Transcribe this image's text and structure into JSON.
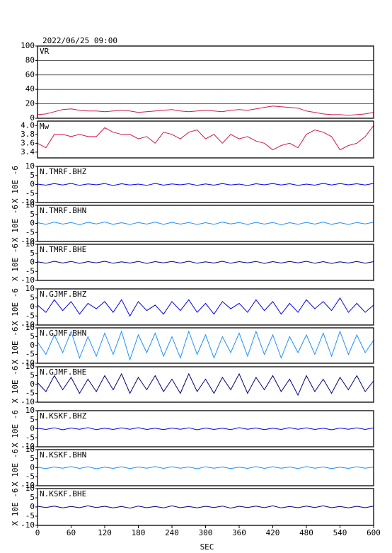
{
  "chart_data": [
    {
      "type": "line",
      "title": "2022/06/25 09:00",
      "label": "VR",
      "color": "#d0194a",
      "grid": true,
      "xlim": [
        0,
        600
      ],
      "ylim": [
        0,
        100
      ],
      "yticks": [
        0,
        20,
        40,
        60,
        80,
        100
      ],
      "x": [
        0,
        15,
        30,
        45,
        60,
        75,
        90,
        105,
        120,
        135,
        150,
        165,
        180,
        195,
        210,
        225,
        240,
        255,
        270,
        285,
        300,
        315,
        330,
        345,
        360,
        375,
        390,
        405,
        420,
        435,
        450,
        465,
        480,
        495,
        510,
        525,
        540,
        555,
        570,
        585,
        600
      ],
      "values": [
        5,
        6,
        9,
        12,
        13,
        11,
        10,
        10,
        9,
        10,
        11,
        10,
        8,
        9,
        10,
        11,
        12,
        10,
        9,
        10,
        11,
        10,
        9,
        11,
        12,
        11,
        13,
        15,
        17,
        16,
        15,
        14,
        10,
        8,
        6,
        5,
        5,
        4,
        5,
        6,
        8
      ]
    },
    {
      "type": "line",
      "label": "Mw",
      "color": "#d0194a",
      "xlim": [
        0,
        600
      ],
      "ylim": [
        3.27,
        4.1
      ],
      "yticks": [
        3.4,
        3.6,
        3.8,
        {
          "value": 4,
          "label": "4.0"
        }
      ],
      "x": [
        0,
        15,
        30,
        45,
        60,
        75,
        90,
        105,
        120,
        135,
        150,
        165,
        180,
        195,
        210,
        225,
        240,
        255,
        270,
        285,
        300,
        315,
        330,
        345,
        360,
        375,
        390,
        405,
        420,
        435,
        450,
        465,
        480,
        495,
        510,
        525,
        540,
        555,
        570,
        585,
        600
      ],
      "values": [
        3.6,
        3.5,
        3.8,
        3.8,
        3.75,
        3.8,
        3.75,
        3.75,
        3.95,
        3.85,
        3.8,
        3.8,
        3.7,
        3.75,
        3.6,
        3.85,
        3.8,
        3.7,
        3.85,
        3.9,
        3.7,
        3.8,
        3.6,
        3.8,
        3.7,
        3.75,
        3.65,
        3.6,
        3.45,
        3.55,
        3.6,
        3.5,
        3.8,
        3.9,
        3.85,
        3.75,
        3.45,
        3.55,
        3.6,
        3.75,
        4.0
      ]
    },
    {
      "type": "line",
      "label": "N.TMRF.BHZ",
      "ylabel": "X 10E -6",
      "color": "#0000ee",
      "xlim": [
        0,
        600
      ],
      "ylim": [
        -10,
        10
      ],
      "yticks": [
        -10,
        -5,
        0,
        5,
        10
      ],
      "x": [
        0,
        15,
        30,
        45,
        60,
        75,
        90,
        105,
        120,
        135,
        150,
        165,
        180,
        195,
        210,
        225,
        240,
        255,
        270,
        285,
        300,
        315,
        330,
        345,
        360,
        375,
        390,
        405,
        420,
        435,
        450,
        465,
        480,
        495,
        510,
        525,
        540,
        555,
        570,
        585,
        600
      ],
      "values": [
        0.2,
        -0.4,
        0.5,
        -0.3,
        0.6,
        -0.5,
        0.3,
        -0.2,
        0.5,
        -0.6,
        0.4,
        -0.3,
        0.2,
        -0.5,
        0.6,
        -0.4,
        0.3,
        -0.2,
        0.4,
        -0.5,
        0.3,
        -0.4,
        0.5,
        -0.3,
        0.2,
        -0.6,
        0.4,
        -0.2,
        0.5,
        -0.3,
        0.4,
        -0.5,
        0.2,
        -0.4,
        0.6,
        -0.3,
        0.5,
        -0.2,
        0.4,
        -0.3,
        0.6
      ]
    },
    {
      "type": "line",
      "label": "N.TMRF.BHN",
      "ylabel": "X 10E -6",
      "color": "#1e90ff",
      "xlim": [
        0,
        600
      ],
      "ylim": [
        -10,
        10
      ],
      "yticks": [
        -10,
        -5,
        0,
        5,
        10
      ],
      "x": [
        0,
        15,
        30,
        45,
        60,
        75,
        90,
        105,
        120,
        135,
        150,
        165,
        180,
        195,
        210,
        225,
        240,
        255,
        270,
        285,
        300,
        315,
        330,
        345,
        360,
        375,
        390,
        405,
        420,
        435,
        450,
        465,
        480,
        495,
        510,
        525,
        540,
        555,
        570,
        585,
        600
      ],
      "values": [
        0.4,
        -0.5,
        0.7,
        -0.4,
        0.5,
        -0.7,
        0.6,
        -0.3,
        0.8,
        -0.5,
        0.4,
        -0.6,
        0.5,
        -0.4,
        0.7,
        -0.5,
        0.6,
        -0.4,
        0.5,
        -0.6,
        0.4,
        -0.5,
        0.7,
        -0.3,
        0.5,
        -0.6,
        0.6,
        -0.4,
        0.5,
        -0.7,
        0.4,
        -0.5,
        0.6,
        -0.4,
        0.7,
        -0.5,
        0.4,
        -0.6,
        0.5,
        -0.3,
        0.7
      ]
    },
    {
      "type": "line",
      "label": "N.TMRF.BHE",
      "ylabel": "X 10E -6",
      "color": "#000080",
      "xlim": [
        0,
        600
      ],
      "ylim": [
        -10,
        10
      ],
      "yticks": [
        -10,
        -5,
        0,
        5,
        10
      ],
      "x": [
        0,
        15,
        30,
        45,
        60,
        75,
        90,
        105,
        120,
        135,
        150,
        165,
        180,
        195,
        210,
        225,
        240,
        255,
        270,
        285,
        300,
        315,
        330,
        345,
        360,
        375,
        390,
        405,
        420,
        435,
        450,
        465,
        480,
        495,
        510,
        525,
        540,
        555,
        570,
        585,
        600
      ],
      "values": [
        0.3,
        -0.5,
        0.6,
        -0.4,
        0.5,
        -0.6,
        0.4,
        -0.3,
        0.6,
        -0.5,
        0.3,
        -0.4,
        0.5,
        -0.6,
        0.4,
        -0.3,
        0.5,
        -0.4,
        0.6,
        -0.5,
        0.3,
        -0.4,
        0.6,
        -0.5,
        0.4,
        -0.3,
        0.5,
        -0.6,
        0.4,
        -0.4,
        0.5,
        -0.3,
        0.6,
        -0.5,
        0.4,
        -0.6,
        0.3,
        -0.4,
        0.5,
        -0.5,
        0.4
      ]
    },
    {
      "type": "line",
      "label": "N.GJMF.BHZ",
      "ylabel": "X 10E -6",
      "color": "#0000ee",
      "xlim": [
        0,
        600
      ],
      "ylim": [
        -10,
        10
      ],
      "yticks": [
        -10,
        -5,
        0,
        5,
        10
      ],
      "x": [
        0,
        15,
        30,
        45,
        60,
        75,
        90,
        105,
        120,
        135,
        150,
        165,
        180,
        195,
        210,
        225,
        240,
        255,
        270,
        285,
        300,
        315,
        330,
        345,
        360,
        375,
        390,
        405,
        420,
        435,
        450,
        465,
        480,
        495,
        510,
        525,
        540,
        555,
        570,
        585,
        600
      ],
      "values": [
        1,
        -3,
        4,
        -2,
        3,
        -4,
        2,
        -1,
        3,
        -3,
        4,
        -5,
        3,
        -2,
        1,
        -4,
        3,
        -2,
        4,
        -3,
        2,
        -4,
        3,
        -1,
        2,
        -3,
        4,
        -2,
        3,
        -4,
        2,
        -3,
        4,
        -1,
        3,
        -2,
        5,
        -3,
        2,
        -3,
        1
      ]
    },
    {
      "type": "line",
      "label": "N.GJMF.BHN",
      "ylabel": "X 10E -6",
      "color": "#1e90ff",
      "xlim": [
        0,
        600
      ],
      "ylim": [
        -10,
        10
      ],
      "yticks": [
        -10,
        -5,
        0,
        5,
        10
      ],
      "x": [
        0,
        15,
        30,
        45,
        60,
        75,
        90,
        105,
        120,
        135,
        150,
        165,
        180,
        195,
        210,
        225,
        240,
        255,
        270,
        285,
        300,
        315,
        330,
        345,
        360,
        375,
        390,
        405,
        420,
        435,
        450,
        465,
        480,
        495,
        510,
        525,
        540,
        555,
        570,
        585,
        600
      ],
      "values": [
        2,
        -5,
        6,
        -4,
        8,
        -7,
        5,
        -6,
        7,
        -5,
        8,
        -8,
        6,
        -4,
        7,
        -6,
        5,
        -7,
        8,
        -5,
        6,
        -7,
        5,
        -4,
        7,
        -6,
        8,
        -5,
        6,
        -7,
        5,
        -4,
        6,
        -5,
        7,
        -6,
        8,
        -5,
        6,
        -4,
        3
      ]
    },
    {
      "type": "line",
      "label": "N.GJMF.BHE",
      "ylabel": "X 10E -6",
      "color": "#000080",
      "xlim": [
        0,
        600
      ],
      "ylim": [
        -10,
        10
      ],
      "yticks": [
        -10,
        -5,
        0,
        5,
        10
      ],
      "x": [
        0,
        15,
        30,
        45,
        60,
        75,
        90,
        105,
        120,
        135,
        150,
        165,
        180,
        195,
        210,
        225,
        240,
        255,
        270,
        285,
        300,
        315,
        330,
        345,
        360,
        375,
        390,
        405,
        420,
        435,
        450,
        465,
        480,
        495,
        510,
        525,
        540,
        555,
        570,
        585,
        600
      ],
      "values": [
        1,
        -4,
        5,
        -3,
        4,
        -5,
        3,
        -4,
        5,
        -3,
        6,
        -5,
        4,
        -3,
        5,
        -4,
        3,
        -5,
        6,
        -4,
        3,
        -5,
        4,
        -3,
        6,
        -5,
        4,
        -3,
        5,
        -4,
        3,
        -6,
        5,
        -4,
        3,
        -5,
        4,
        -3,
        5,
        -4,
        2
      ]
    },
    {
      "type": "line",
      "label": "N.KSKF.BHZ",
      "ylabel": "X 10E -6",
      "color": "#0000ee",
      "xlim": [
        0,
        600
      ],
      "ylim": [
        -10,
        10
      ],
      "yticks": [
        -10,
        -5,
        0,
        5,
        10
      ],
      "x": [
        0,
        15,
        30,
        45,
        60,
        75,
        90,
        105,
        120,
        135,
        150,
        165,
        180,
        195,
        210,
        225,
        240,
        255,
        270,
        285,
        300,
        315,
        330,
        345,
        360,
        375,
        390,
        405,
        420,
        435,
        450,
        465,
        480,
        495,
        510,
        525,
        540,
        555,
        570,
        585,
        600
      ],
      "values": [
        0.3,
        -0.4,
        0.5,
        -0.6,
        0.4,
        -0.3,
        0.6,
        -0.5,
        0.3,
        -0.4,
        0.5,
        -0.3,
        0.6,
        -0.4,
        0.3,
        -0.5,
        0.4,
        -0.3,
        0.5,
        -0.6,
        0.4,
        -0.4,
        0.3,
        -0.5,
        0.6,
        -0.3,
        0.4,
        -0.5,
        0.3,
        -0.4,
        0.6,
        -0.3,
        0.5,
        -0.4,
        0.3,
        -0.6,
        0.4,
        -0.3,
        0.5,
        -0.4,
        0.5
      ]
    },
    {
      "type": "line",
      "label": "N.KSKF.BHN",
      "ylabel": "X 10E -6",
      "color": "#1e90ff",
      "xlim": [
        0,
        600
      ],
      "ylim": [
        -10,
        10
      ],
      "yticks": [
        -10,
        -5,
        0,
        5,
        10
      ],
      "x": [
        0,
        15,
        30,
        45,
        60,
        75,
        90,
        105,
        120,
        135,
        150,
        165,
        180,
        195,
        210,
        225,
        240,
        255,
        270,
        285,
        300,
        315,
        330,
        345,
        360,
        375,
        390,
        405,
        420,
        435,
        450,
        465,
        480,
        495,
        510,
        525,
        540,
        555,
        570,
        585,
        600
      ],
      "values": [
        0.2,
        -0.5,
        0.4,
        -0.3,
        0.6,
        -0.4,
        0.5,
        -0.6,
        0.3,
        -0.4,
        0.5,
        -0.5,
        0.4,
        -0.3,
        0.6,
        -0.4,
        0.5,
        -0.3,
        0.4,
        -0.6,
        0.5,
        -0.3,
        0.4,
        -0.5,
        0.3,
        -0.4,
        0.6,
        -0.4,
        0.5,
        -0.3,
        0.4,
        -0.5,
        0.6,
        -0.3,
        0.4,
        -0.5,
        0.3,
        -0.4,
        0.5,
        -0.3,
        0.4
      ]
    },
    {
      "type": "line",
      "label": "N.KSKF.BHE",
      "ylabel": "X 10E -6",
      "color": "#000080",
      "xlim": [
        0,
        600
      ],
      "ylim": [
        -10,
        10
      ],
      "yticks": [
        -10,
        -5,
        0,
        5,
        10
      ],
      "xlabel": "SEC",
      "xticks": [
        0,
        60,
        120,
        180,
        240,
        300,
        360,
        420,
        480,
        540,
        600
      ],
      "x": [
        0,
        15,
        30,
        45,
        60,
        75,
        90,
        105,
        120,
        135,
        150,
        165,
        180,
        195,
        210,
        225,
        240,
        255,
        270,
        285,
        300,
        315,
        330,
        345,
        360,
        375,
        390,
        405,
        420,
        435,
        450,
        465,
        480,
        495,
        510,
        525,
        540,
        555,
        570,
        585,
        600
      ],
      "values": [
        0.4,
        -0.3,
        0.5,
        -0.5,
        0.3,
        -0.4,
        0.6,
        -0.3,
        0.4,
        -0.5,
        0.3,
        -0.6,
        0.5,
        -0.4,
        0.3,
        -0.5,
        0.6,
        -0.4,
        0.3,
        -0.5,
        0.4,
        -0.3,
        0.5,
        -0.6,
        0.4,
        -0.3,
        0.5,
        -0.4,
        0.6,
        -0.5,
        0.3,
        -0.4,
        0.5,
        -0.3,
        0.6,
        -0.4,
        0.3,
        -0.5,
        0.4,
        -0.4,
        0.5
      ]
    }
  ]
}
